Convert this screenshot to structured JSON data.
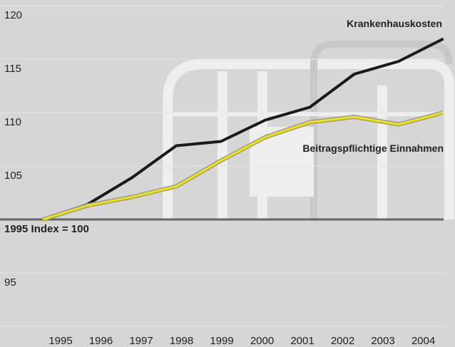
{
  "chart_data": {
    "type": "line",
    "categories": [
      "1995",
      "1996",
      "1997",
      "1998",
      "1999",
      "2000",
      "2001",
      "2002",
      "2003",
      "2004"
    ],
    "series": [
      {
        "name": "Krankenhauskosten",
        "color": "#1a1a1a",
        "values": [
          100,
          101.4,
          103.9,
          106.9,
          107.3,
          109.3,
          110.5,
          113.6,
          114.8,
          116.9
        ]
      },
      {
        "name": "Beitragspflichtige Einnahmen",
        "color": "#f2e600",
        "values": [
          100,
          101.3,
          102.1,
          103.1,
          105.5,
          107.7,
          109.1,
          109.6,
          108.9,
          110
        ]
      }
    ],
    "ylim": [
      90,
      120
    ],
    "yticks": [
      95,
      {
        "value": 100,
        "label": "1995 Index = 100"
      },
      105,
      110,
      115,
      120
    ],
    "grid": true
  }
}
